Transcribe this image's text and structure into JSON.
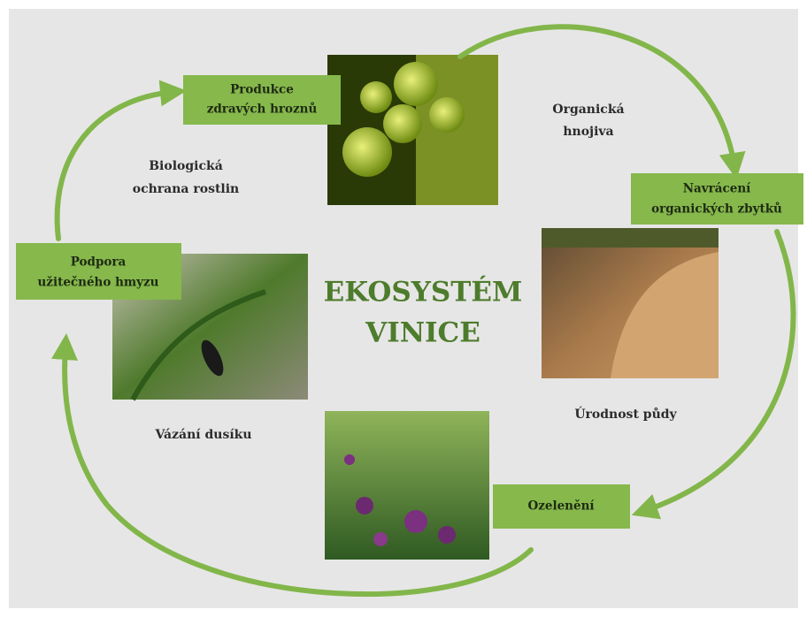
{
  "title": {
    "lines": [
      "EKOSYSTÉM",
      "VINICE"
    ]
  },
  "nodes": [
    {
      "lines": [
        "Produkce",
        "zdravých hroznů"
      ]
    },
    {
      "lines": [
        "Navrácení",
        "organických zbytků"
      ]
    },
    {
      "lines": [
        "Ozelenění"
      ]
    },
    {
      "lines": [
        "Podpora",
        "užitečného hmyzu"
      ]
    }
  ],
  "edge_labels": [
    {
      "lines": [
        "Organická",
        "hnojiva"
      ]
    },
    {
      "lines": [
        "Úrodnost půdy"
      ]
    },
    {
      "lines": [
        "Vázání dusíku"
      ]
    },
    {
      "lines": [
        "Biologická",
        "ochrana rostlin"
      ]
    }
  ]
}
